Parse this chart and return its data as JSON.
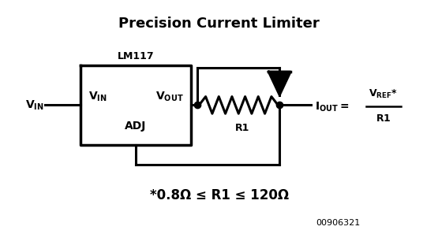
{
  "title": "Precision Current Limiter",
  "ic_label": "LM117",
  "r1_label": "R1",
  "constraint": "*0.8Ω ≤ R1 ≤ 120Ω",
  "part_number": "00906321",
  "bg_color": "#ffffff",
  "line_color": "#000000"
}
